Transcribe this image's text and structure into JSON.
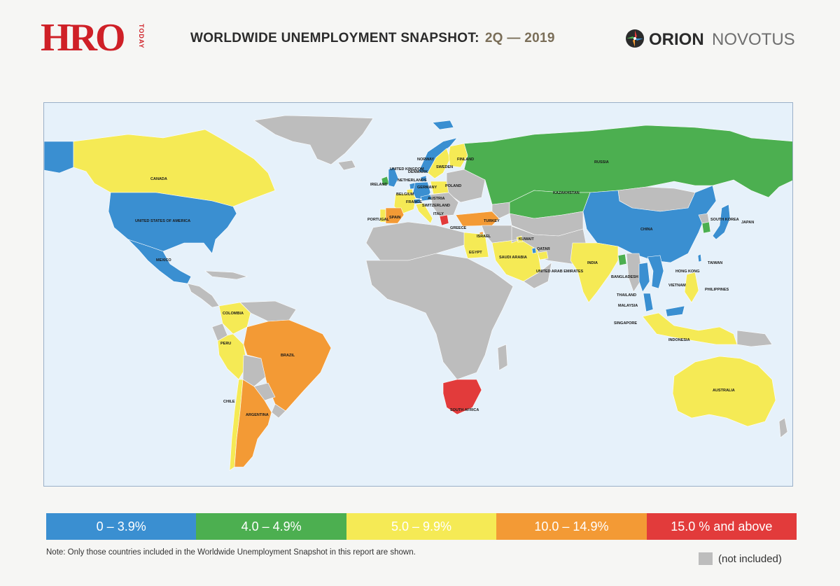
{
  "header": {
    "logo_text": "HRO",
    "logo_sub": "TODAY",
    "title": "WORLDWIDE UNEMPLOYMENT SNAPSHOT:",
    "period": "2Q — 2019",
    "brand_bold": "ORION",
    "brand_light": "NOVOTUS"
  },
  "colors": {
    "band_1": "#3a8fd1",
    "band_2": "#4caf50",
    "band_3": "#f5ea55",
    "band_4": "#f39a35",
    "band_5": "#e23b3b",
    "not_included": "#bdbdbd",
    "ocean": "#e6f1fa"
  },
  "legend": {
    "bands": [
      {
        "label": "0 – 3.9%",
        "color": "#3a8fd1"
      },
      {
        "label": "4.0 – 4.9%",
        "color": "#4caf50"
      },
      {
        "label": "5.0 – 9.9%",
        "color": "#f5ea55"
      },
      {
        "label": "10.0 – 14.9%",
        "color": "#f39a35"
      },
      {
        "label": "15.0 % and above",
        "color": "#e23b3b"
      }
    ],
    "not_included_label": "(not included)"
  },
  "note": "Note:  Only those countries included in the Worldwide Unemployment Snapshot in this report are shown.",
  "map_labels": {
    "canada": "CANADA",
    "usa": "UNITED STATES OF AMERICA",
    "mexico": "MEXICO",
    "colombia": "COLOMBIA",
    "peru": "PERU",
    "brazil": "BRAZIL",
    "chile": "CHILE",
    "argentina": "ARGENTINA",
    "ireland": "IRELAND",
    "uk": "UNITED KINGDOM",
    "norway": "NORWAY",
    "sweden": "SWEDEN",
    "finland": "FINLAND",
    "denmark": "DENMARK",
    "netherlands": "NETHERLANDS",
    "germany": "GERMANY",
    "belgium": "BELGIUM",
    "poland": "POLAND",
    "austria": "AUSTRIA",
    "france": "FRANCE",
    "switzerland": "SWITZERLAND",
    "portugal": "PORTUGAL",
    "spain": "SPAIN",
    "italy": "ITALY",
    "greece": "GREECE",
    "turkey": "TURKEY",
    "russia": "RUSSIA",
    "kazakhstan": "KAZAKHSTAN",
    "china": "CHINA",
    "south_korea": "SOUTH KOREA",
    "japan": "JAPAN",
    "israel": "ISRAEL",
    "kuwait": "KUWAIT",
    "egypt": "EGYPT",
    "qatar": "QATAR",
    "saudi_arabia": "SAUDI ARABIA",
    "uae": "UNITED ARAB EMIRATES",
    "india": "INDIA",
    "bangladesh": "BANGLADESH",
    "hong_kong": "HONG KONG",
    "taiwan": "TAIWAN",
    "thailand": "THAILAND",
    "vietnam": "VIETNAM",
    "philippines": "PHILIPPINES",
    "malaysia": "MALAYSIA",
    "singapore": "SINGAPORE",
    "indonesia": "INDONESIA",
    "australia": "AUSTRALIA",
    "south_africa": "SOUTH AFRICA"
  }
}
